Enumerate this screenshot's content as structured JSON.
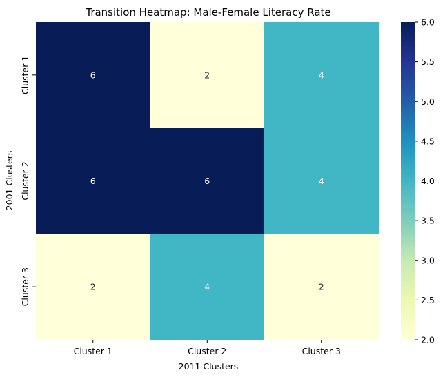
{
  "chart_data": {
    "type": "heatmap",
    "title": "Transition Heatmap: Male-Female Literacy Rate",
    "xlabel": "2011 Clusters",
    "ylabel": "2001 Clusters",
    "x_categories": [
      "Cluster 1",
      "Cluster 2",
      "Cluster 3"
    ],
    "y_categories": [
      "Cluster 1",
      "Cluster 2",
      "Cluster 3"
    ],
    "values": [
      [
        6,
        2,
        4
      ],
      [
        6,
        6,
        4
      ],
      [
        2,
        4,
        2
      ]
    ],
    "colormap": "YlGnBu",
    "colorbar": {
      "range": [
        2.0,
        6.0
      ],
      "ticks": [
        "2.0",
        "2.5",
        "3.0",
        "3.5",
        "4.0",
        "4.5",
        "5.0",
        "5.5",
        "6.0"
      ]
    },
    "colors": {
      "low": "#ffffd9",
      "mid": "#41b6c4",
      "high": "#081d58"
    }
  }
}
